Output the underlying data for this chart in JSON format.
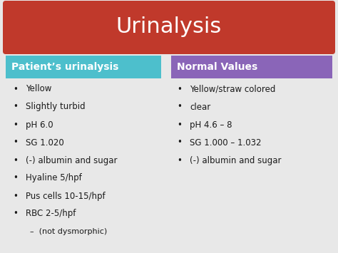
{
  "title": "Urinalysis",
  "title_bg_color": "#c0392b",
  "title_text_color": "#ffffff",
  "title_fontsize": 22,
  "bg_color": "#e8e8e8",
  "left_header": "Patient’s urinalysis",
  "left_header_bg": "#4dbfcc",
  "left_header_text_color": "#ffffff",
  "right_header": "Normal Values",
  "right_header_bg": "#8a65b8",
  "right_header_text_color": "#ffffff",
  "header_fontsize": 10,
  "left_items": [
    "Yellow",
    "Slightly turbid",
    "pH 6.0",
    "SG 1.020",
    "(-) albumin and sugar",
    "Hyaline 5/hpf",
    "Pus cells 10-15/hpf",
    "RBC 2-5/hpf",
    "–  (not dysmorphic)"
  ],
  "right_items": [
    "Yellow/straw colored",
    "clear",
    "pH 4.6 – 8",
    "SG 1.000 – 1.032",
    "(-) albumin and sugar"
  ],
  "item_fontsize": 8.5,
  "item_text_color": "#1a1a1a",
  "bullet": "•"
}
